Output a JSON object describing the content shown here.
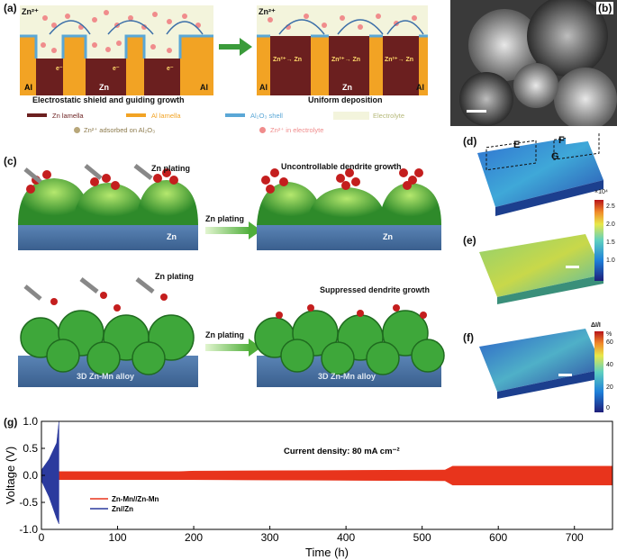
{
  "panels": {
    "a": "(a)",
    "b": "(b)",
    "c": "(c)",
    "d": "(d)",
    "e": "(e)",
    "f": "(f)",
    "g": "(g)"
  },
  "panel_a": {
    "zn2_left": "Zn²⁺",
    "zn2_right": "Zn²⁺",
    "caption_left": "Electrostatic shield and guiding growth",
    "caption_right": "Uniform deposition",
    "al": "Al",
    "zn": "Zn",
    "e": "e⁻",
    "reaction": "Zn²⁺→ Zn",
    "legend": {
      "zn_lamella": "Zn lamella",
      "al_lamella": "Al lamella",
      "shell": "Al₂O₃ shell",
      "electrolyte": "Electrolyte",
      "adsorbed": "Zn²⁺ adsorbed on Al₂O₃",
      "in_electrolyte": "Zn²⁺ in electrolyte"
    },
    "colors": {
      "zn": "#6b1f1f",
      "al": "#f2a324",
      "shell": "#5aa7d6",
      "electrolyte": "#f3f4dc",
      "ion": "#f08c8c"
    }
  },
  "panel_c": {
    "zn_plating_1": "Zn plating",
    "zn_plating_2": "Zn plating",
    "arrow_1": "Zn plating",
    "arrow_2": "Zn plating",
    "title_top": "Uncontrollable dendrite growth",
    "title_bottom": "Suppressed dendrite growth",
    "zn": "Zn",
    "alloy": "3D Zn-Mn alloy"
  },
  "panel_d": {
    "letters": [
      "E",
      "F",
      "G"
    ]
  },
  "colorbar_de": {
    "exponent": "×10⁴",
    "ticks": [
      "2.5",
      "2.0",
      "1.5",
      "1.0"
    ]
  },
  "colorbar_f": {
    "title": "ΔI/I",
    "unit": "%",
    "ticks": [
      "60",
      "40",
      "20",
      "0"
    ]
  },
  "chart_data": {
    "type": "line",
    "xlabel": "Time (h)",
    "ylabel": "Voltage (V)",
    "xlim": [
      0,
      750
    ],
    "ylim": [
      -1.0,
      1.0
    ],
    "xticks": [
      0,
      100,
      200,
      300,
      400,
      500,
      600,
      700
    ],
    "yticks": [
      1.0,
      0.5,
      0.0,
      -0.5,
      -1.0
    ],
    "xtick_labels": [
      "0",
      "100",
      "200",
      "300",
      "400",
      "500",
      "600",
      "700"
    ],
    "ytick_labels": [
      "1.0",
      "0.5",
      "0.0",
      "-0.5",
      "-1.0"
    ],
    "annotation": "Current density: 80 mA cm⁻²",
    "series": [
      {
        "name": "Zn-Mn//Zn-Mn",
        "color": "#e8341c",
        "x": [
          5,
          180,
          200,
          530,
          540,
          750
        ],
        "upper": [
          0.07,
          0.07,
          0.08,
          0.1,
          0.17,
          0.17
        ],
        "lower": [
          -0.08,
          -0.08,
          -0.08,
          -0.1,
          -0.18,
          -0.18
        ]
      },
      {
        "name": "Zn//Zn",
        "color": "#2b3a9e",
        "x": [
          0,
          10,
          20,
          23
        ],
        "upper": [
          0.1,
          0.3,
          0.6,
          1.0
        ],
        "lower": [
          -0.1,
          -0.4,
          -0.8,
          -0.9
        ]
      }
    ]
  }
}
